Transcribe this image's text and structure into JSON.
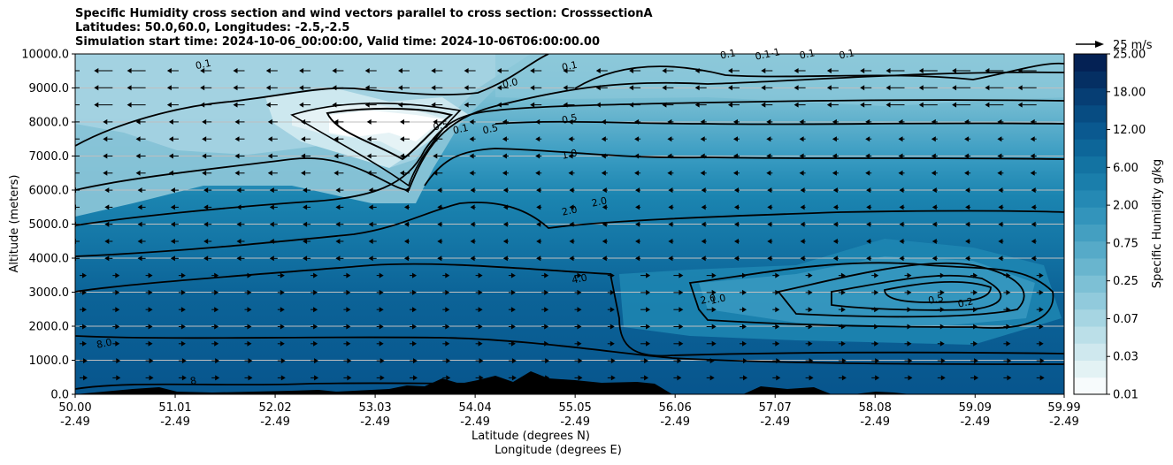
{
  "chart_data": {
    "type": "heatmap",
    "title_lines": [
      "Specific Humidity cross section and wind vectors parallel to cross section: CrosssectionA",
      "Latitudes: 50.0,60.0, Longitudes: -2.5,-2.5",
      "Simulation start time: 2024-10-06_00:00:00, Valid time: 2024-10-06T06:00:00.00"
    ],
    "ylabel": "Altitude (meters)",
    "xlabel_lines": [
      "Latitude (degrees N)",
      "Longitude (degrees E)"
    ],
    "ylim": [
      0,
      10000
    ],
    "xlim": [
      50.0,
      59.99
    ],
    "y_ticks": [
      0,
      1000,
      2000,
      3000,
      4000,
      5000,
      6000,
      7000,
      8000,
      9000,
      10000
    ],
    "y_tick_labels": [
      "0.0",
      "1000.0",
      "2000.0",
      "3000.0",
      "4000.0",
      "5000.0",
      "6000.0",
      "7000.0",
      "8000.0",
      "9000.0",
      "10000.0"
    ],
    "x_ticks": [
      50.0,
      51.01,
      52.02,
      53.03,
      54.04,
      55.05,
      56.06,
      57.07,
      58.08,
      59.09,
      59.99
    ],
    "x_tick_labels_lat": [
      "50.00",
      "51.01",
      "52.02",
      "53.03",
      "54.04",
      "55.05",
      "56.06",
      "57.07",
      "58.08",
      "59.09",
      "59.99"
    ],
    "x_tick_labels_lon": [
      "-2.49",
      "-2.49",
      "-2.49",
      "-2.49",
      "-2.49",
      "-2.49",
      "-2.49",
      "-2.49",
      "-2.49",
      "-2.49",
      "-2.49"
    ],
    "grid": "horizontal",
    "colorbar": {
      "label": "Specific Humidity g/kg",
      "tick_labels": [
        "0.01",
        "0.03",
        "0.07",
        "0.25",
        "0.75",
        "2.00",
        "6.00",
        "12.00",
        "18.00",
        "25.00"
      ],
      "levels": 19,
      "colors": [
        "#f7fbfc",
        "#e3f2f4",
        "#cfe8ee",
        "#bbdfe8",
        "#a6d5e2",
        "#91cadc",
        "#7dc0d5",
        "#69b5ce",
        "#56aac8",
        "#449fc1",
        "#3394bb",
        "#2589b4",
        "#1a7eab",
        "#1373a2",
        "#0d6699",
        "#0a5990",
        "#074c82",
        "#063e74",
        "#052f63",
        "#042154"
      ]
    },
    "quiver_key": "25 m/s",
    "contour_labels": [
      {
        "text": "0.1",
        "x": 51.3,
        "y": 9600
      },
      {
        "text": "0.1",
        "x": 55.0,
        "y": 9550
      },
      {
        "text": "0.0",
        "x": 54.4,
        "y": 9050
      },
      {
        "text": "0.1",
        "x": 56.6,
        "y": 9900
      },
      {
        "text": "0.1-1",
        "x": 57.0,
        "y": 9900
      },
      {
        "text": "0.1",
        "x": 57.4,
        "y": 9900
      },
      {
        "text": "0.1",
        "x": 57.8,
        "y": 9900
      },
      {
        "text": "0.5",
        "x": 55.0,
        "y": 8000
      },
      {
        "text": "0.5",
        "x": 54.2,
        "y": 7700
      },
      {
        "text": "0.5",
        "x": 53.7,
        "y": 7800
      },
      {
        "text": "0.1",
        "x": 53.9,
        "y": 7700
      },
      {
        "text": "1.0",
        "x": 55.0,
        "y": 6960
      },
      {
        "text": "2.0",
        "x": 55.3,
        "y": 5560
      },
      {
        "text": "2.0",
        "x": 55.0,
        "y": 5300
      },
      {
        "text": "4.0",
        "x": 55.1,
        "y": 3300
      },
      {
        "text": "2.0",
        "x": 56.4,
        "y": 2700
      },
      {
        "text": "1.0",
        "x": 56.5,
        "y": 2700
      },
      {
        "text": "0.5",
        "x": 58.7,
        "y": 2700
      },
      {
        "text": "0.2",
        "x": 59.0,
        "y": 2600
      },
      {
        "text": "8.0",
        "x": 50.3,
        "y": 1400
      },
      {
        "text": "8",
        "x": 51.2,
        "y": 300
      }
    ]
  }
}
